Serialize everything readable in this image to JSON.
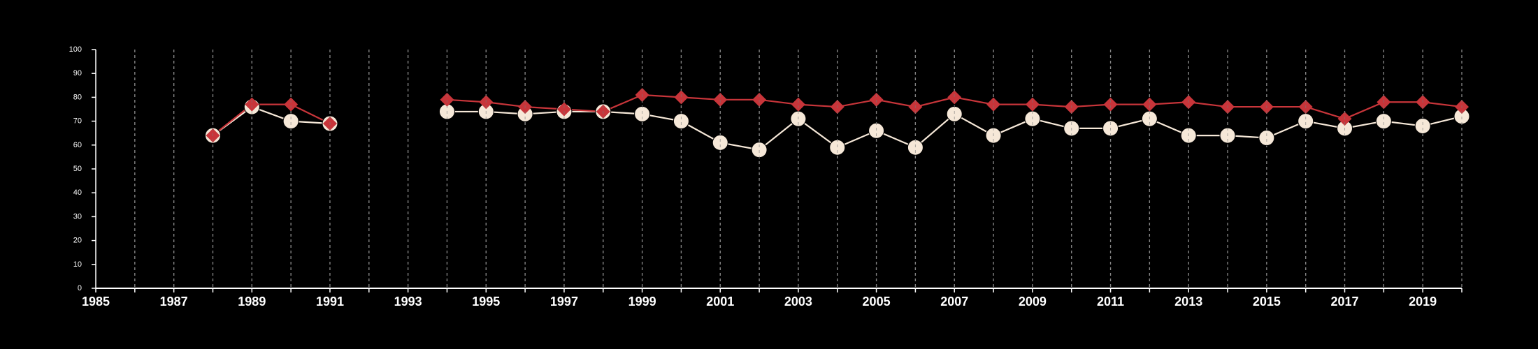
{
  "chart_data": {
    "type": "line",
    "title": "",
    "xlabel": "",
    "ylabel": "",
    "xlim": [
      1985,
      2020
    ],
    "ylim": [
      0,
      100
    ],
    "x_ticks": [
      "1985",
      "1987",
      "1989",
      "1991",
      "1993",
      "1995",
      "1997",
      "1999",
      "2001",
      "2003",
      "2005",
      "2007",
      "2009",
      "2011",
      "2013",
      "2015",
      "2017",
      "2019"
    ],
    "y_ticks": [
      "0",
      "10",
      "20",
      "30",
      "40",
      "50",
      "60",
      "70",
      "80",
      "90",
      "100"
    ],
    "grid": "vertical dashed lines at every year",
    "colors": {
      "background": "#000000",
      "series_1": "#F6E8D8",
      "series_2": "#C8353A",
      "axis": "#FFFFFF",
      "grid": "#9A9A9A"
    },
    "series": [
      {
        "marker": "circle",
        "color": "#F6E8D8",
        "segments": [
          {
            "x": [
              1988,
              1989,
              1990,
              1991
            ],
            "y": [
              64,
              76,
              70,
              69
            ]
          },
          {
            "x": [
              1994,
              1995,
              1996,
              1997,
              1998,
              1999,
              2000,
              2001,
              2002,
              2003,
              2004,
              2005,
              2006,
              2007,
              2008,
              2009,
              2010,
              2011,
              2012,
              2013,
              2014,
              2015,
              2016,
              2017,
              2018,
              2019,
              2020
            ],
            "y": [
              74,
              74,
              73,
              74,
              74,
              73,
              70,
              61,
              58,
              71,
              59,
              66,
              59,
              73,
              64,
              71,
              67,
              67,
              71,
              64,
              64,
              63,
              70,
              67,
              70,
              68,
              72
            ]
          }
        ]
      },
      {
        "marker": "diamond",
        "color": "#C8353A",
        "segments": [
          {
            "x": [
              1988,
              1989,
              1990,
              1991
            ],
            "y": [
              64,
              77,
              77,
              69
            ]
          },
          {
            "x": [
              1994,
              1995,
              1996,
              1997,
              1998,
              1999,
              2000,
              2001,
              2002,
              2003,
              2004,
              2005,
              2006,
              2007,
              2008,
              2009,
              2010,
              2011,
              2012,
              2013,
              2014,
              2015,
              2016,
              2017,
              2018,
              2019,
              2020
            ],
            "y": [
              79,
              78,
              76,
              75,
              74,
              81,
              80,
              79,
              79,
              77,
              76,
              79,
              76,
              80,
              77,
              77,
              76,
              77,
              77,
              78,
              76,
              76,
              76,
              71,
              78,
              78,
              76
            ]
          }
        ]
      }
    ]
  }
}
